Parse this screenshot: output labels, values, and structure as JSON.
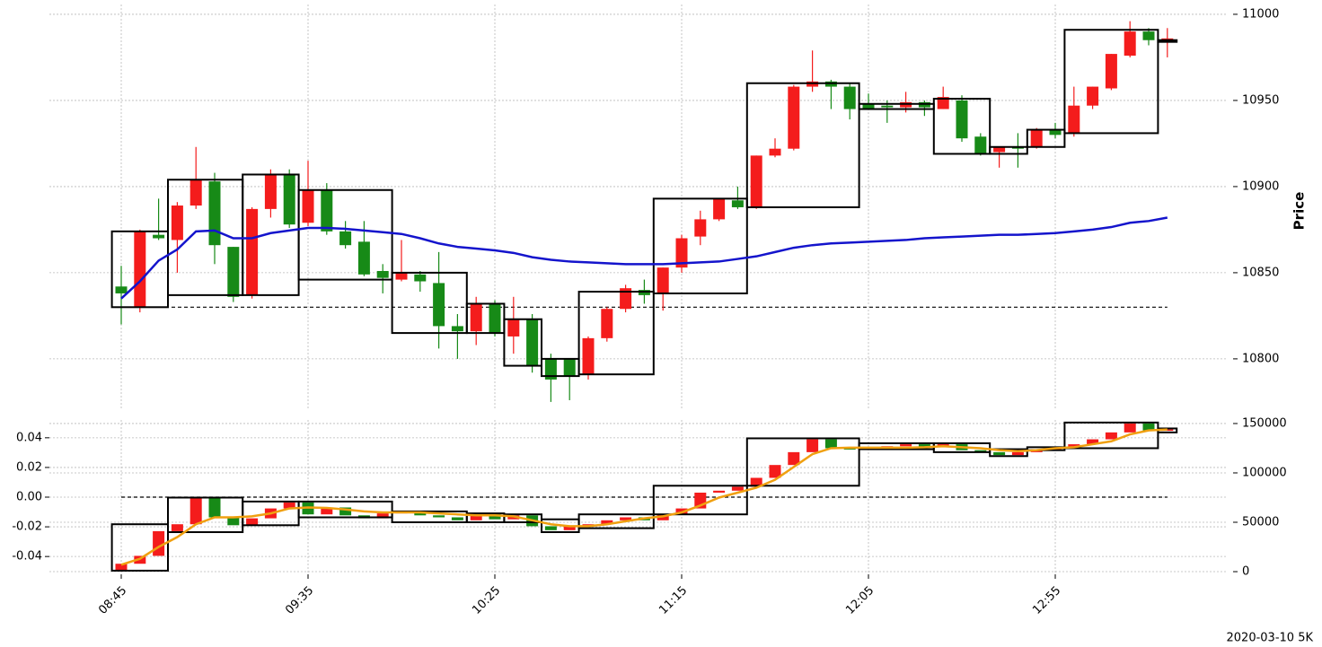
{
  "chart_data": [
    {
      "type": "candlestick",
      "ylabel": "Price",
      "open": [
        10842,
        10830,
        10872,
        10869,
        10889,
        10903,
        10865,
        10837,
        10887,
        10907,
        10879,
        10898,
        10874,
        10868,
        10851,
        10846,
        10849,
        10844,
        10819,
        10816,
        10832,
        10813,
        10823,
        10800,
        10800,
        10791,
        10812,
        10829,
        10840,
        10838,
        10853,
        10871,
        10881,
        10892,
        10888,
        10918,
        10922,
        10958,
        10961,
        10958,
        10948,
        10947,
        10946,
        10949,
        10945,
        10950,
        10929,
        10920,
        10923,
        10923,
        10933,
        10931,
        10947,
        10957,
        10976,
        10990,
        10985
      ],
      "high": [
        10854,
        10875,
        10893,
        10891,
        10923,
        10908,
        10865,
        10888,
        10910,
        10910,
        10915,
        10902,
        10880,
        10880,
        10855,
        10869,
        10851,
        10862,
        10826,
        10836,
        10834,
        10836,
        10826,
        10803,
        10800,
        10813,
        10830,
        10843,
        10846,
        10853,
        10872,
        10886,
        10893,
        10900,
        10918,
        10928,
        10959,
        10979,
        10962,
        10960,
        10954,
        10950,
        10955,
        10950,
        10958,
        10953,
        10931,
        10923,
        10931,
        10934,
        10937,
        10958,
        10958,
        10977,
        10996,
        10992,
        10992
      ],
      "low": [
        10820,
        10827,
        10869,
        10850,
        10887,
        10855,
        10833,
        10835,
        10882,
        10876,
        10877,
        10872,
        10864,
        10848,
        10838,
        10845,
        10839,
        10806,
        10800,
        10808,
        10813,
        10803,
        10792,
        10775,
        10776,
        10788,
        10810,
        10827,
        10832,
        10828,
        10850,
        10866,
        10880,
        10887,
        10887,
        10917,
        10921,
        10955,
        10945,
        10939,
        10945,
        10937,
        10943,
        10941,
        10945,
        10926,
        10918,
        10911,
        10911,
        10922,
        10928,
        10929,
        10945,
        10956,
        10975,
        10982,
        10975
      ],
      "close": [
        10838,
        10874,
        10870,
        10889,
        10904,
        10866,
        10836,
        10887,
        10907,
        10878,
        10898,
        10874,
        10866,
        10849,
        10847,
        10850,
        10845,
        10819,
        10816,
        10832,
        10815,
        10823,
        10796,
        10788,
        10790,
        10812,
        10829,
        10841,
        10837,
        10853,
        10870,
        10881,
        10893,
        10888,
        10918,
        10922,
        10958,
        10961,
        10958,
        10945,
        10945,
        10946,
        10949,
        10946,
        10952,
        10928,
        10919,
        10923,
        10922,
        10933,
        10930,
        10947,
        10958,
        10977,
        10990,
        10985,
        10986
      ],
      "up_color": "#f41c1c",
      "down_color": "#178a17",
      "boxes": [
        {
          "start": 0,
          "end": 2,
          "low": 10830,
          "high": 10874
        },
        {
          "start": 3,
          "end": 6,
          "low": 10837,
          "high": 10904
        },
        {
          "start": 7,
          "end": 9,
          "low": 10837,
          "high": 10907
        },
        {
          "start": 10,
          "end": 14,
          "low": 10846,
          "high": 10898
        },
        {
          "start": 15,
          "end": 18,
          "low": 10815,
          "high": 10850
        },
        {
          "start": 19,
          "end": 20,
          "low": 10815,
          "high": 10832
        },
        {
          "start": 21,
          "end": 22,
          "low": 10796,
          "high": 10823
        },
        {
          "start": 23,
          "end": 24,
          "low": 10790,
          "high": 10800
        },
        {
          "start": 25,
          "end": 28,
          "low": 10791,
          "high": 10839
        },
        {
          "start": 29,
          "end": 33,
          "low": 10838,
          "high": 10893
        },
        {
          "start": 34,
          "end": 39,
          "low": 10888,
          "high": 10960
        },
        {
          "start": 40,
          "end": 43,
          "low": 10945,
          "high": 10948
        },
        {
          "start": 44,
          "end": 46,
          "low": 10919,
          "high": 10951
        },
        {
          "start": 47,
          "end": 48,
          "low": 10919,
          "high": 10923
        },
        {
          "start": 49,
          "end": 50,
          "low": 10923,
          "high": 10933
        },
        {
          "start": 51,
          "end": 55,
          "low": 10931,
          "high": 10991
        },
        {
          "start": 56,
          "end": 56,
          "low": 10984,
          "high": 10985
        }
      ],
      "ma": {
        "color": "#1414cc",
        "values": [
          10835,
          10845,
          10857,
          10863.5,
          10874,
          10874.5,
          10870,
          10870,
          10873,
          10874.5,
          10876,
          10876,
          10875.5,
          10874.5,
          10873.5,
          10872.5,
          10870,
          10867,
          10865,
          10864,
          10863,
          10861.5,
          10859,
          10857.5,
          10856.5,
          10856,
          10855.5,
          10855,
          10855,
          10855,
          10855.5,
          10856,
          10856.5,
          10858,
          10859.5,
          10862,
          10864.5,
          10866,
          10867,
          10867.5,
          10868,
          10868.5,
          10869,
          10870,
          10870.5,
          10871,
          10871.5,
          10872,
          10872,
          10872.5,
          10873,
          10874,
          10875,
          10876.5,
          10879,
          10880,
          10882
        ]
      },
      "hline": {
        "value": 10830
      },
      "ylim": [
        10771.3,
        11005.7
      ],
      "yticks": [
        10800,
        10850,
        10900,
        10950,
        11000
      ],
      "grid": true
    },
    {
      "type": "candlestick",
      "categories": [
        "08:45",
        null,
        null,
        null,
        null,
        null,
        null,
        null,
        null,
        null,
        "09:35",
        null,
        null,
        null,
        null,
        null,
        null,
        null,
        null,
        null,
        "10:25",
        null,
        null,
        null,
        null,
        null,
        null,
        null,
        null,
        null,
        "11:15",
        null,
        null,
        null,
        null,
        null,
        null,
        null,
        null,
        null,
        "12:05",
        null,
        null,
        null,
        null,
        null,
        null,
        null,
        null,
        null,
        "12:55",
        null,
        null,
        null,
        null,
        null,
        null
      ],
      "open": [
        1000,
        8000,
        16000,
        41000,
        48000,
        75000,
        55000,
        47000,
        54000,
        64000,
        70000,
        58000,
        65000,
        57000,
        54000,
        59000,
        61000,
        57000,
        55000,
        52000,
        59000,
        53000,
        57000,
        46000,
        42000,
        46000,
        48000,
        52000,
        55000,
        52000,
        58000,
        64000,
        80000,
        82000,
        86000,
        95000,
        108000,
        121000,
        134000,
        125000,
        124000,
        126000,
        127000,
        129000,
        126000,
        129000,
        123000,
        121000,
        118000,
        121000,
        124000,
        125000,
        129000,
        134000,
        141000,
        150000,
        143000
      ],
      "close": [
        8000,
        16000,
        41000,
        48000,
        75000,
        55000,
        47000,
        54000,
        64000,
        70000,
        58000,
        65000,
        57000,
        54000,
        59000,
        61000,
        57000,
        55000,
        52000,
        59000,
        53000,
        57000,
        46000,
        42000,
        46000,
        48000,
        52000,
        55000,
        52000,
        58000,
        64000,
        80000,
        82000,
        86000,
        95000,
        108000,
        121000,
        134000,
        125000,
        124000,
        126000,
        127000,
        129000,
        126000,
        129000,
        123000,
        121000,
        118000,
        121000,
        124000,
        125000,
        129000,
        134000,
        141000,
        150000,
        143000,
        144000
      ],
      "up_color": "#f41c1c",
      "down_color": "#178a17",
      "boxes": [
        {
          "start": 0,
          "end": 2,
          "low": 1000,
          "high": 48000
        },
        {
          "start": 3,
          "end": 6,
          "low": 40000,
          "high": 75000
        },
        {
          "start": 7,
          "end": 9,
          "low": 47000,
          "high": 71000
        },
        {
          "start": 10,
          "end": 14,
          "low": 55000,
          "high": 71000
        },
        {
          "start": 15,
          "end": 18,
          "low": 50000,
          "high": 61000
        },
        {
          "start": 19,
          "end": 20,
          "low": 50000,
          "high": 59000
        },
        {
          "start": 21,
          "end": 22,
          "low": 50000,
          "high": 58000
        },
        {
          "start": 23,
          "end": 24,
          "low": 40000,
          "high": 53000
        },
        {
          "start": 25,
          "end": 28,
          "low": 44000,
          "high": 58000
        },
        {
          "start": 29,
          "end": 33,
          "low": 58000,
          "high": 87000
        },
        {
          "start": 34,
          "end": 39,
          "low": 87000,
          "high": 135000
        },
        {
          "start": 40,
          "end": 43,
          "low": 124000,
          "high": 130000
        },
        {
          "start": 44,
          "end": 46,
          "low": 121000,
          "high": 130000
        },
        {
          "start": 47,
          "end": 48,
          "low": 117000,
          "high": 124000
        },
        {
          "start": 49,
          "end": 50,
          "low": 123000,
          "high": 126000
        },
        {
          "start": 51,
          "end": 55,
          "low": 125000,
          "high": 151000
        },
        {
          "start": 56,
          "end": 56,
          "low": 141000,
          "high": 145000
        }
      ],
      "ma": {
        "color": "#f0a010",
        "values": [
          7000,
          13000,
          25000,
          35000,
          48000,
          55000,
          55000,
          56000,
          59000,
          64000,
          65000,
          64500,
          63000,
          61000,
          60000,
          60000,
          60000,
          59000,
          58000,
          57000,
          57000,
          56000,
          52000,
          48000,
          46000,
          46000,
          48000,
          51000,
          54000,
          56000,
          60000,
          67000,
          75000,
          80000,
          85000,
          93000,
          106000,
          119000,
          125000,
          125500,
          125500,
          125500,
          125500,
          126000,
          127000,
          126000,
          125000,
          123000,
          122000,
          123000,
          125000,
          126000,
          129000,
          132000,
          139000,
          143000,
          144000
        ]
      },
      "hline": {
        "axis": "y2",
        "value": 0
      },
      "ylim": [
        -2700,
        153600
      ],
      "yticks": [
        0,
        50000,
        100000,
        150000
      ],
      "y2lim": [
        -0.052,
        0.052
      ],
      "y2ticks": [
        0.04,
        0.02,
        {
          "value": 0,
          "label": "0.00"
        },
        -0.02,
        -0.04
      ],
      "grid": true
    }
  ],
  "footer": "2020-03-10 5K"
}
